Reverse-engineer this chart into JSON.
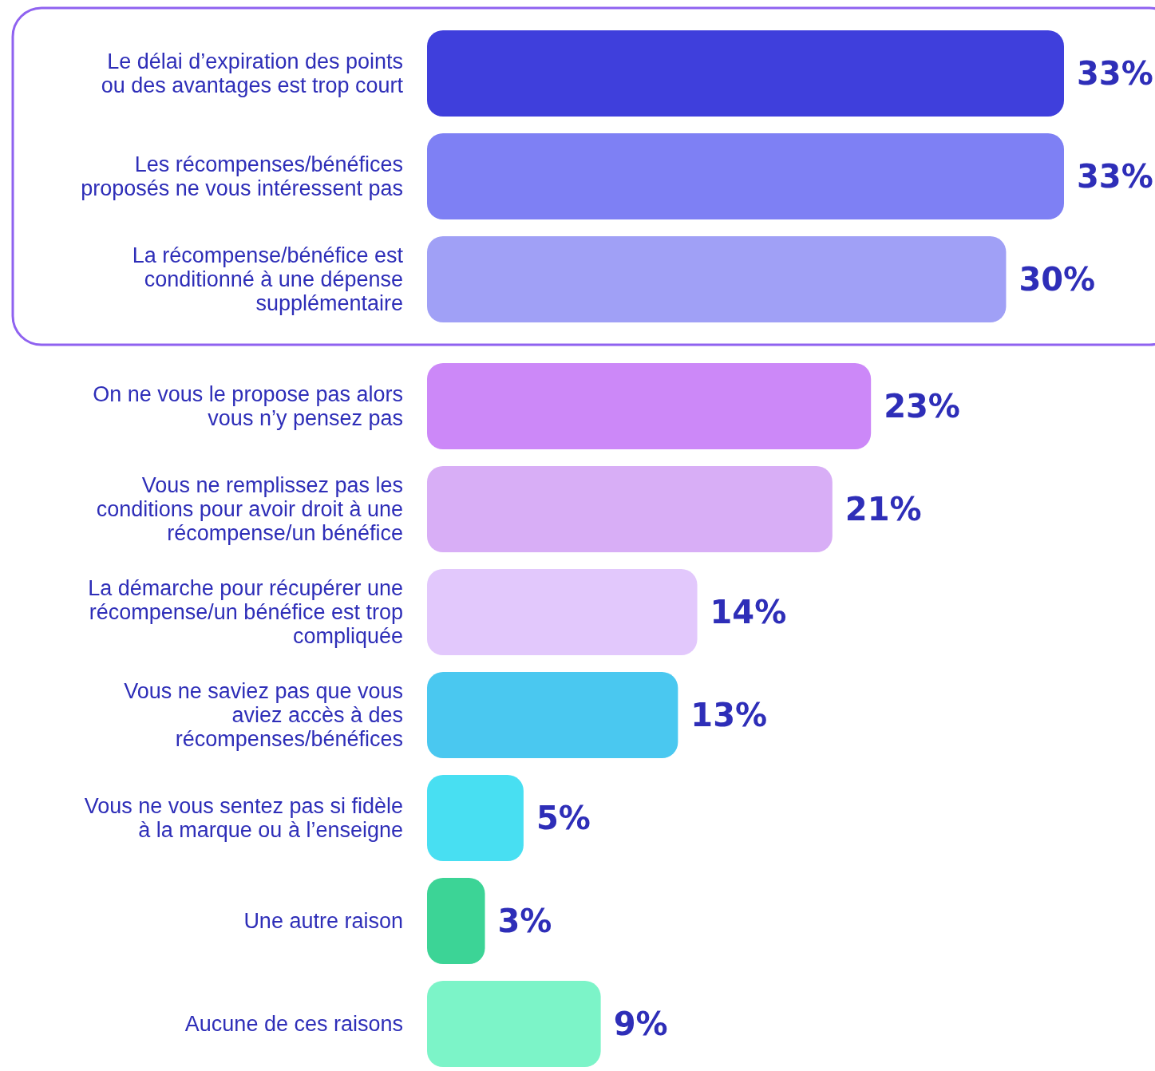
{
  "chart_data": {
    "type": "bar",
    "orientation": "horizontal",
    "categories": [
      "Le délai d’expiration des points\nou des avantages est trop court",
      "Les récompenses/bénéfices\nproposés ne vous intéressent pas",
      "La récompense/bénéfice est\nconditionné à une dépense\nsupplémentaire",
      "On ne vous le propose pas alors\nvous n’y pensez pas",
      "Vous ne remplissez pas les\nconditions pour avoir droit à une\nrécompense/un bénéfice",
      "La démarche pour récupérer une\nrécompense/un bénéfice est trop\ncompliquée",
      "Vous ne saviez pas que vous\naviez accès à des\nrécompenses/bénéfices",
      "Vous ne vous sentez pas si fidèle\nà la marque ou à l’enseigne",
      "Une autre raison",
      "Aucune de ces raisons"
    ],
    "values": [
      33,
      33,
      30,
      23,
      21,
      14,
      13,
      5,
      3,
      9
    ],
    "value_labels": [
      "33%",
      "33%",
      "30%",
      "23%",
      "21%",
      "14%",
      "13%",
      "5%",
      "3%",
      "9%"
    ],
    "colors": [
      "#3f3fdc",
      "#7e80f4",
      "#a0a0f6",
      "#cc88f8",
      "#d8aef6",
      "#e2c8fc",
      "#4ac8f0",
      "#48dff2",
      "#3cd496",
      "#7cf4c8"
    ]
  }
}
